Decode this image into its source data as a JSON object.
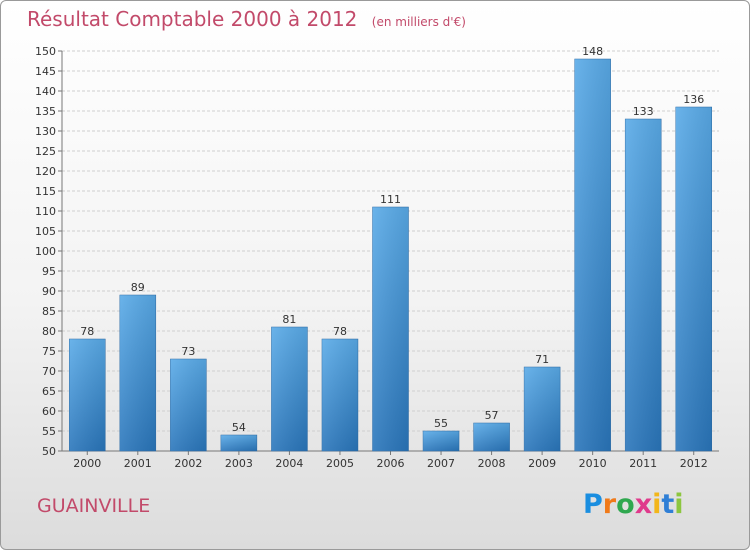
{
  "chart_data": {
    "type": "bar",
    "title": "Résultat Comptable 2000 à 2012",
    "subtitle": "(en milliers d'€)",
    "categories": [
      "2000",
      "2001",
      "2002",
      "2003",
      "2004",
      "2005",
      "2006",
      "2007",
      "2008",
      "2009",
      "2010",
      "2011",
      "2012"
    ],
    "values": [
      78,
      89,
      73,
      54,
      81,
      78,
      111,
      55,
      57,
      71,
      148,
      133,
      136
    ],
    "ylim": [
      50,
      150
    ],
    "yticks": [
      50,
      55,
      60,
      65,
      70,
      75,
      80,
      85,
      90,
      95,
      100,
      105,
      110,
      115,
      120,
      125,
      130,
      135,
      140,
      145,
      150
    ],
    "grid": true,
    "bar_color": "#3a8fd6"
  },
  "footer": {
    "place": "GUAINVILLE",
    "logo_letters": [
      "P",
      "r",
      "o",
      "x",
      "i",
      "t",
      "i"
    ],
    "logo_colors": [
      "#1a8ee0",
      "#f07a1a",
      "#2fa84f",
      "#e03a8c",
      "#f2b61a",
      "#2f7fd6",
      "#8cc63f"
    ]
  },
  "colors": {
    "title": "#c24a6a"
  }
}
